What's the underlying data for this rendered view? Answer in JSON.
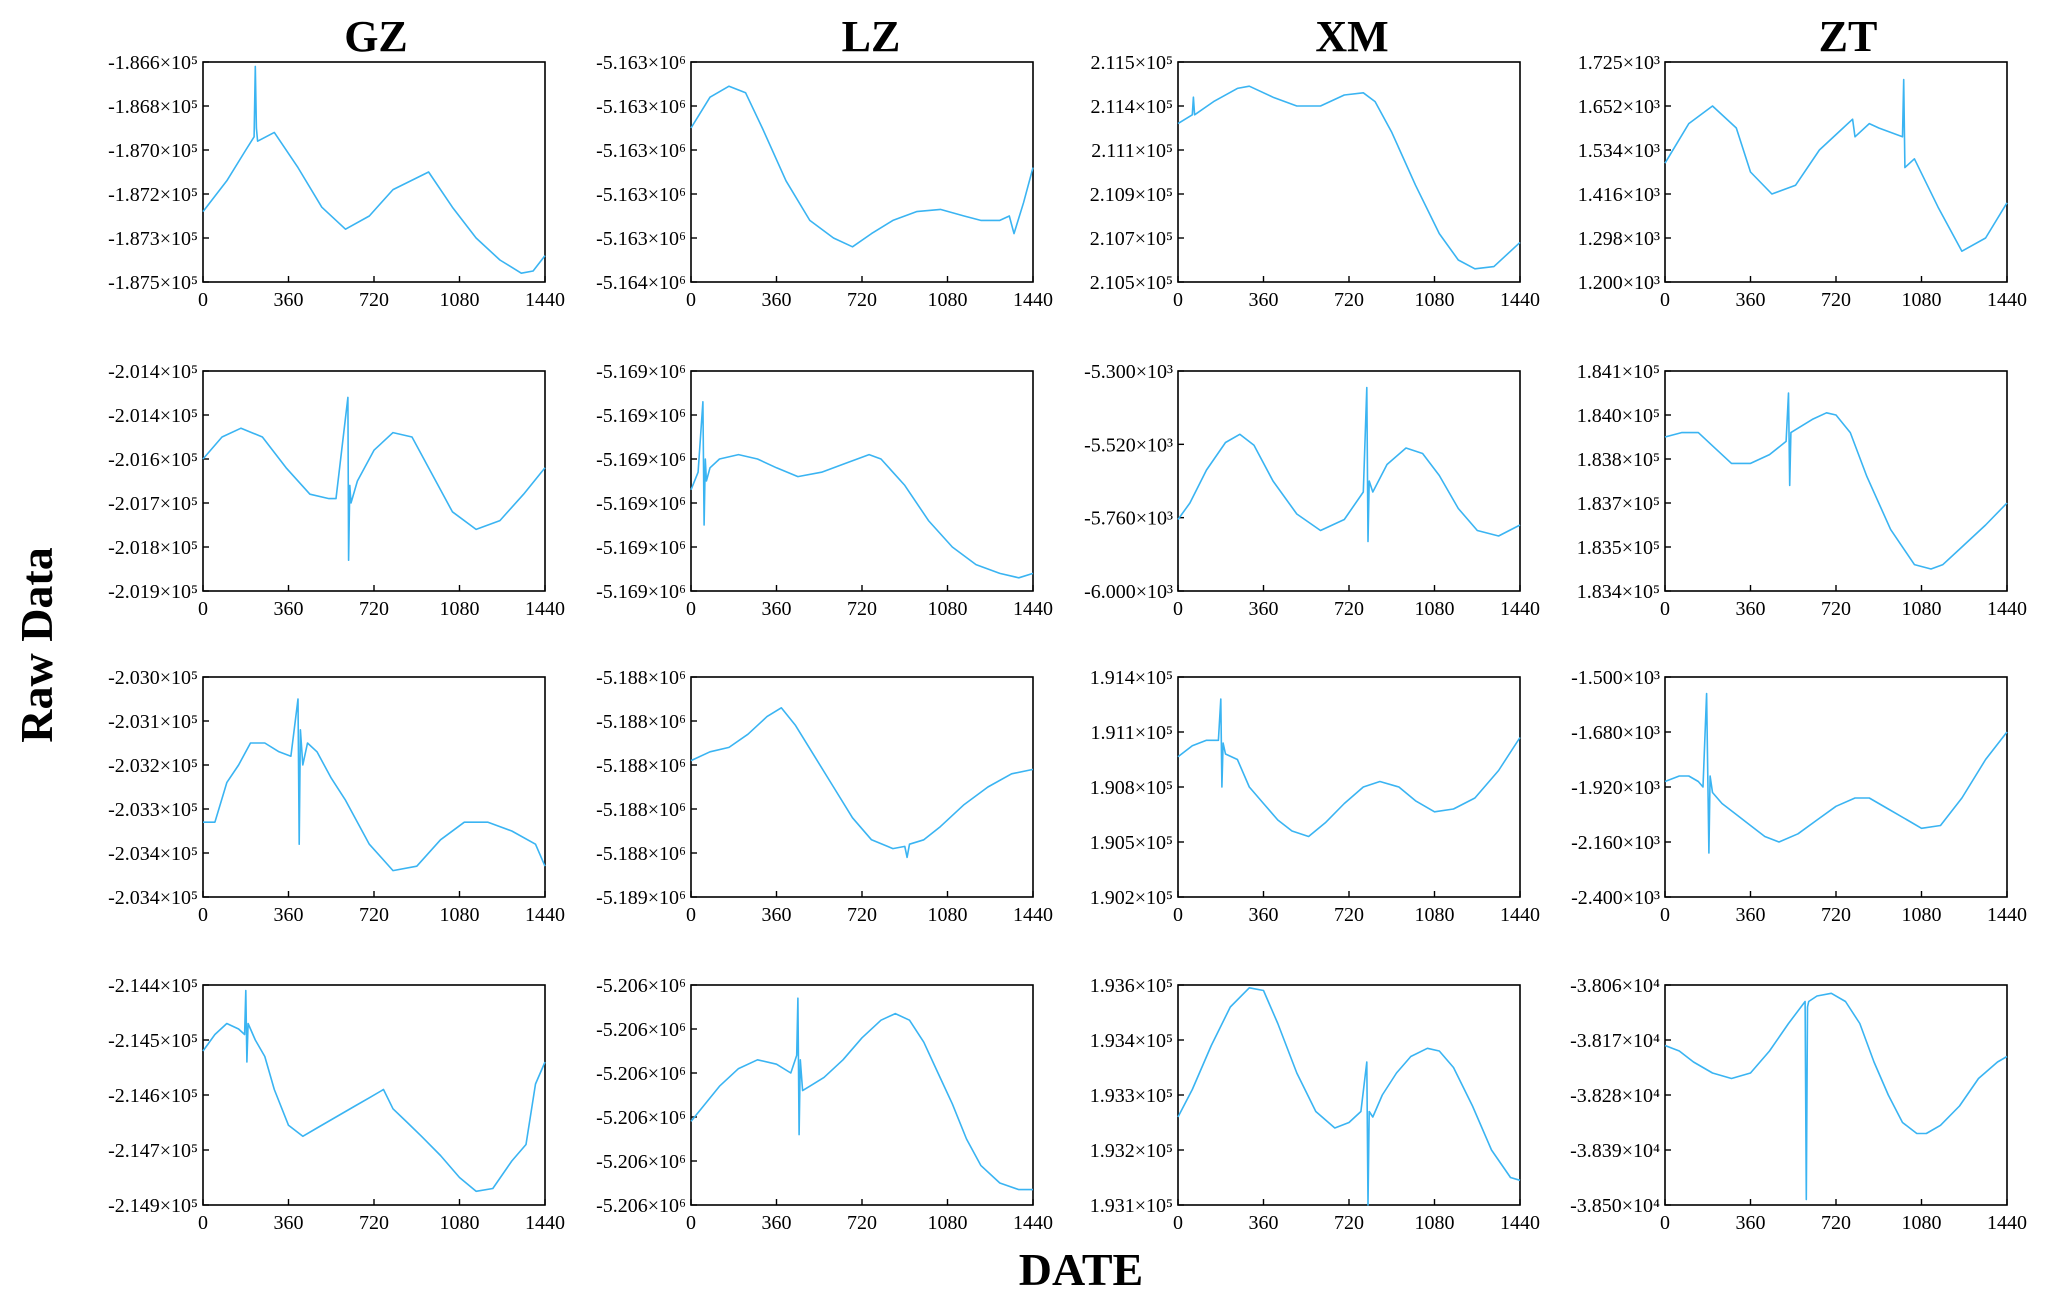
{
  "column_titles": [
    "GZ",
    "LZ",
    "XM",
    "ZT"
  ],
  "ylabel": "Raw Data",
  "xlabel": "DATE",
  "line_color": "#3ab4f2",
  "chart_data": [
    {
      "type": "line",
      "col": "GZ",
      "row": 1,
      "xlim": [
        0,
        1440
      ],
      "xticks": [
        "0",
        "360",
        "720",
        "1080",
        "1440"
      ],
      "yticks": [
        "-1.866×10⁵",
        "-1.868×10⁵",
        "-1.870×10⁵",
        "-1.872×10⁵",
        "-1.873×10⁵",
        "-1.875×10⁵"
      ],
      "ylim": [
        0,
        5
      ],
      "x": [
        0,
        100,
        180,
        215,
        220,
        225,
        230,
        300,
        400,
        500,
        600,
        700,
        800,
        950,
        1050,
        1150,
        1250,
        1340,
        1390,
        1440
      ],
      "y": [
        1.6,
        2.3,
        3.0,
        3.3,
        4.9,
        3.5,
        3.2,
        3.4,
        2.6,
        1.7,
        1.2,
        1.5,
        2.1,
        2.5,
        1.7,
        1.0,
        0.5,
        0.2,
        0.25,
        0.6
      ]
    },
    {
      "type": "line",
      "col": "LZ",
      "row": 1,
      "xlim": [
        0,
        1440
      ],
      "xticks": [
        "0",
        "360",
        "720",
        "1080",
        "1440"
      ],
      "yticks": [
        "-5.163×10⁶",
        "-5.163×10⁶",
        "-5.163×10⁶",
        "-5.163×10⁶",
        "-5.163×10⁶",
        "-5.164×10⁶"
      ],
      "ylim": [
        0,
        5
      ],
      "x": [
        0,
        80,
        160,
        230,
        300,
        400,
        500,
        600,
        680,
        760,
        850,
        950,
        1050,
        1150,
        1220,
        1300,
        1340,
        1360,
        1400,
        1440
      ],
      "y": [
        3.5,
        4.2,
        4.45,
        4.3,
        3.5,
        2.3,
        1.4,
        1.0,
        0.8,
        1.1,
        1.4,
        1.6,
        1.65,
        1.5,
        1.4,
        1.4,
        1.5,
        1.1,
        1.8,
        2.6
      ]
    },
    {
      "type": "line",
      "col": "XM",
      "row": 1,
      "xlim": [
        0,
        1440
      ],
      "xticks": [
        "0",
        "360",
        "720",
        "1080",
        "1440"
      ],
      "yticks": [
        "2.115×10⁵",
        "2.114×10⁵",
        "2.111×10⁵",
        "2.109×10⁵",
        "2.107×10⁵",
        "2.105×10⁵"
      ],
      "ylim": [
        0,
        5
      ],
      "x": [
        0,
        60,
        65,
        70,
        150,
        250,
        300,
        400,
        500,
        600,
        700,
        780,
        830,
        900,
        1000,
        1100,
        1180,
        1250,
        1330,
        1440
      ],
      "y": [
        3.6,
        3.8,
        4.2,
        3.8,
        4.1,
        4.4,
        4.45,
        4.2,
        4.0,
        4.0,
        4.25,
        4.3,
        4.1,
        3.4,
        2.2,
        1.1,
        0.5,
        0.3,
        0.35,
        0.9
      ]
    },
    {
      "type": "line",
      "col": "ZT",
      "row": 1,
      "xlim": [
        0,
        1440
      ],
      "xticks": [
        "0",
        "360",
        "720",
        "1080",
        "1440"
      ],
      "yticks": [
        "1.725×10³",
        "1.652×10³",
        "1.534×10³",
        "1.416×10³",
        "1.298×10³",
        "1.200×10³"
      ],
      "ylim": [
        0,
        5
      ],
      "x": [
        0,
        100,
        200,
        300,
        360,
        450,
        550,
        650,
        750,
        790,
        800,
        860,
        900,
        1000,
        1005,
        1010,
        1050,
        1150,
        1250,
        1350,
        1440
      ],
      "y": [
        2.7,
        3.6,
        4.0,
        3.5,
        2.5,
        2.0,
        2.2,
        3.0,
        3.5,
        3.7,
        3.3,
        3.6,
        3.5,
        3.3,
        4.6,
        2.6,
        2.8,
        1.7,
        0.7,
        1.0,
        1.8
      ]
    },
    {
      "type": "line",
      "col": "GZ",
      "row": 2,
      "xlim": [
        0,
        1440
      ],
      "xticks": [
        "0",
        "360",
        "720",
        "1080",
        "1440"
      ],
      "yticks": [
        "-2.014×10⁵",
        "-2.014×10⁵",
        "-2.016×10⁵",
        "-2.017×10⁵",
        "-2.018×10⁵",
        "-2.019×10⁵"
      ],
      "ylim": [
        0,
        5
      ],
      "x": [
        0,
        80,
        160,
        250,
        350,
        450,
        530,
        560,
        610,
        613,
        618,
        623,
        650,
        720,
        800,
        880,
        950,
        1050,
        1150,
        1250,
        1350,
        1440
      ],
      "y": [
        3.0,
        3.5,
        3.7,
        3.5,
        2.8,
        2.2,
        2.1,
        2.1,
        4.4,
        0.7,
        2.4,
        2.0,
        2.5,
        3.2,
        3.6,
        3.5,
        2.8,
        1.8,
        1.4,
        1.6,
        2.2,
        2.8
      ]
    },
    {
      "type": "line",
      "col": "LZ",
      "row": 2,
      "xlim": [
        0,
        1440
      ],
      "xticks": [
        "0",
        "360",
        "720",
        "1080",
        "1440"
      ],
      "yticks": [
        "-5.169×10⁶",
        "-5.169×10⁶",
        "-5.169×10⁶",
        "-5.169×10⁶",
        "-5.169×10⁶",
        "-5.169×10⁶"
      ],
      "ylim": [
        0,
        5
      ],
      "x": [
        0,
        30,
        50,
        55,
        60,
        65,
        80,
        120,
        200,
        280,
        360,
        450,
        550,
        650,
        750,
        800,
        900,
        1000,
        1100,
        1200,
        1300,
        1380,
        1440
      ],
      "y": [
        2.3,
        2.7,
        4.3,
        1.5,
        3.0,
        2.5,
        2.8,
        3.0,
        3.1,
        3.0,
        2.8,
        2.6,
        2.7,
        2.9,
        3.1,
        3.0,
        2.4,
        1.6,
        1.0,
        0.6,
        0.4,
        0.3,
        0.4
      ]
    },
    {
      "type": "line",
      "col": "XM",
      "row": 2,
      "xlim": [
        0,
        1440
      ],
      "xticks": [
        "0",
        "360",
        "720",
        "1080",
        "1440"
      ],
      "yticks": [
        "-5.300×10³",
        "-5.520×10³",
        "-5.760×10³",
        "-6.000×10³"
      ],
      "ylim": [
        0,
        4
      ],
      "x": [
        0,
        50,
        120,
        200,
        260,
        320,
        400,
        500,
        600,
        700,
        780,
        795,
        800,
        805,
        820,
        880,
        960,
        1030,
        1100,
        1180,
        1260,
        1350,
        1440
      ],
      "y": [
        1.3,
        1.6,
        2.2,
        2.7,
        2.85,
        2.65,
        2.0,
        1.4,
        1.1,
        1.3,
        1.8,
        3.7,
        0.9,
        2.0,
        1.8,
        2.3,
        2.6,
        2.5,
        2.1,
        1.5,
        1.1,
        1.0,
        1.2
      ]
    },
    {
      "type": "line",
      "col": "ZT",
      "row": 2,
      "xlim": [
        0,
        1440
      ],
      "xticks": [
        "0",
        "360",
        "720",
        "1080",
        "1440"
      ],
      "yticks": [
        "1.841×10⁵",
        "1.840×10⁵",
        "1.838×10⁵",
        "1.837×10⁵",
        "1.835×10⁵",
        "1.834×10⁵"
      ],
      "ylim": [
        0,
        5
      ],
      "x": [
        0,
        70,
        140,
        200,
        280,
        360,
        440,
        510,
        520,
        525,
        530,
        560,
        620,
        680,
        720,
        780,
        850,
        950,
        1050,
        1120,
        1170,
        1250,
        1350,
        1440
      ],
      "y": [
        3.5,
        3.6,
        3.6,
        3.3,
        2.9,
        2.9,
        3.1,
        3.4,
        4.5,
        2.4,
        3.6,
        3.7,
        3.9,
        4.05,
        4.0,
        3.6,
        2.6,
        1.4,
        0.6,
        0.5,
        0.6,
        1.0,
        1.5,
        2.0
      ]
    },
    {
      "type": "line",
      "col": "GZ",
      "row": 3,
      "xlim": [
        0,
        1440
      ],
      "xticks": [
        "0",
        "360",
        "720",
        "1080",
        "1440"
      ],
      "yticks": [
        "-2.030×10⁵",
        "-2.031×10⁵",
        "-2.032×10⁵",
        "-2.033×10⁵",
        "-2.034×10⁵",
        "-2.034×10⁵"
      ],
      "ylim": [
        0,
        5
      ],
      "x": [
        0,
        50,
        100,
        150,
        200,
        260,
        320,
        370,
        400,
        405,
        410,
        420,
        440,
        480,
        540,
        600,
        700,
        800,
        900,
        1000,
        1100,
        1200,
        1300,
        1400,
        1440
      ],
      "y": [
        1.7,
        1.7,
        2.6,
        3.0,
        3.5,
        3.5,
        3.3,
        3.2,
        4.5,
        1.2,
        3.8,
        3.0,
        3.5,
        3.3,
        2.7,
        2.2,
        1.2,
        0.6,
        0.7,
        1.3,
        1.7,
        1.7,
        1.5,
        1.2,
        0.7
      ]
    },
    {
      "type": "line",
      "col": "LZ",
      "row": 3,
      "xlim": [
        0,
        1440
      ],
      "xticks": [
        "0",
        "360",
        "720",
        "1080",
        "1440"
      ],
      "yticks": [
        "-5.188×10⁶",
        "-5.188×10⁶",
        "-5.188×10⁶",
        "-5.188×10⁶",
        "-5.188×10⁶",
        "-5.189×10⁶"
      ],
      "ylim": [
        0,
        5
      ],
      "x": [
        0,
        80,
        160,
        240,
        320,
        380,
        440,
        520,
        600,
        680,
        760,
        850,
        900,
        910,
        920,
        980,
        1050,
        1150,
        1250,
        1350,
        1440
      ],
      "y": [
        3.1,
        3.3,
        3.4,
        3.7,
        4.1,
        4.3,
        3.9,
        3.2,
        2.5,
        1.8,
        1.3,
        1.1,
        1.15,
        0.9,
        1.2,
        1.3,
        1.6,
        2.1,
        2.5,
        2.8,
        2.9
      ]
    },
    {
      "type": "line",
      "col": "XM",
      "row": 3,
      "xlim": [
        0,
        1440
      ],
      "xticks": [
        "0",
        "360",
        "720",
        "1080",
        "1440"
      ],
      "yticks": [
        "1.914×10⁵",
        "1.911×10⁵",
        "1.908×10⁵",
        "1.905×10⁵",
        "1.902×10⁵"
      ],
      "ylim": [
        0,
        4
      ],
      "x": [
        0,
        60,
        120,
        170,
        180,
        185,
        190,
        200,
        250,
        300,
        360,
        420,
        480,
        550,
        620,
        700,
        780,
        850,
        930,
        1000,
        1080,
        1160,
        1250,
        1350,
        1440
      ],
      "y": [
        2.55,
        2.75,
        2.85,
        2.85,
        3.6,
        2.0,
        2.8,
        2.6,
        2.5,
        2.0,
        1.7,
        1.4,
        1.2,
        1.1,
        1.35,
        1.7,
        2.0,
        2.1,
        2.0,
        1.75,
        1.55,
        1.6,
        1.8,
        2.3,
        2.9
      ]
    },
    {
      "type": "line",
      "col": "ZT",
      "row": 3,
      "xlim": [
        0,
        1440
      ],
      "xticks": [
        "0",
        "360",
        "720",
        "1080",
        "1440"
      ],
      "yticks": [
        "-1.500×10³",
        "-1.680×10³",
        "-1.920×10³",
        "-2.160×10³",
        "-2.400×10³"
      ],
      "ylim": [
        0,
        4
      ],
      "x": [
        0,
        60,
        100,
        140,
        160,
        175,
        185,
        190,
        200,
        240,
        300,
        360,
        420,
        480,
        560,
        640,
        720,
        800,
        860,
        940,
        1020,
        1080,
        1160,
        1250,
        1350,
        1440
      ],
      "y": [
        2.1,
        2.2,
        2.2,
        2.1,
        2.0,
        3.7,
        0.8,
        2.2,
        1.9,
        1.7,
        1.5,
        1.3,
        1.1,
        1.0,
        1.15,
        1.4,
        1.65,
        1.8,
        1.8,
        1.6,
        1.4,
        1.25,
        1.3,
        1.8,
        2.5,
        3.0
      ]
    },
    {
      "type": "line",
      "col": "GZ",
      "row": 4,
      "xlim": [
        0,
        1440
      ],
      "xticks": [
        "0",
        "360",
        "720",
        "1080",
        "1440"
      ],
      "yticks": [
        "-2.144×10⁵",
        "-2.145×10⁵",
        "-2.146×10⁵",
        "-2.147×10⁵",
        "-2.149×10⁵"
      ],
      "ylim": [
        0,
        4
      ],
      "x": [
        0,
        50,
        100,
        150,
        175,
        180,
        185,
        190,
        220,
        260,
        300,
        360,
        420,
        480,
        560,
        640,
        700,
        760,
        800,
        860,
        920,
        1000,
        1080,
        1150,
        1220,
        1300,
        1360,
        1400,
        1440
      ],
      "y": [
        2.8,
        3.1,
        3.3,
        3.2,
        3.1,
        3.9,
        2.6,
        3.3,
        3.0,
        2.7,
        2.1,
        1.45,
        1.25,
        1.4,
        1.6,
        1.8,
        1.95,
        2.1,
        1.75,
        1.5,
        1.25,
        0.9,
        0.5,
        0.25,
        0.3,
        0.8,
        1.1,
        2.2,
        2.6
      ]
    },
    {
      "type": "line",
      "col": "LZ",
      "row": 4,
      "xlim": [
        0,
        1440
      ],
      "xticks": [
        "0",
        "360",
        "720",
        "1080",
        "1440"
      ],
      "yticks": [
        "-5.206×10⁶",
        "-5.206×10⁶",
        "-5.206×10⁶",
        "-5.206×10⁶",
        "-5.206×10⁶",
        "-5.206×10⁶"
      ],
      "ylim": [
        0,
        5
      ],
      "x": [
        0,
        60,
        120,
        200,
        280,
        360,
        420,
        445,
        450,
        455,
        460,
        470,
        500,
        560,
        640,
        720,
        800,
        860,
        920,
        980,
        1040,
        1100,
        1160,
        1220,
        1300,
        1380,
        1440
      ],
      "y": [
        1.9,
        2.3,
        2.7,
        3.1,
        3.3,
        3.2,
        3.0,
        3.4,
        4.7,
        1.6,
        3.3,
        2.6,
        2.7,
        2.9,
        3.3,
        3.8,
        4.2,
        4.35,
        4.2,
        3.7,
        3.0,
        2.3,
        1.5,
        0.9,
        0.5,
        0.35,
        0.35
      ]
    },
    {
      "type": "line",
      "col": "XM",
      "row": 4,
      "xlim": [
        0,
        1440
      ],
      "xticks": [
        "0",
        "360",
        "720",
        "1080",
        "1440"
      ],
      "yticks": [
        "1.936×10⁵",
        "1.934×10⁵",
        "1.933×10⁵",
        "1.932×10⁵",
        "1.931×10⁵"
      ],
      "ylim": [
        0,
        4
      ],
      "x": [
        0,
        60,
        140,
        220,
        300,
        360,
        420,
        500,
        580,
        660,
        720,
        770,
        795,
        800,
        805,
        820,
        860,
        920,
        980,
        1050,
        1100,
        1160,
        1240,
        1320,
        1400,
        1440
      ],
      "y": [
        1.6,
        2.1,
        2.9,
        3.6,
        3.95,
        3.9,
        3.3,
        2.4,
        1.7,
        1.4,
        1.5,
        1.7,
        2.6,
        0.0,
        1.7,
        1.6,
        2.0,
        2.4,
        2.7,
        2.85,
        2.8,
        2.5,
        1.8,
        1.0,
        0.5,
        0.45
      ]
    },
    {
      "type": "line",
      "col": "ZT",
      "row": 4,
      "xlim": [
        0,
        1440
      ],
      "xticks": [
        "0",
        "360",
        "720",
        "1080",
        "1440"
      ],
      "yticks": [
        "-3.806×10⁴",
        "-3.817×10⁴",
        "-3.828×10⁴",
        "-3.839×10⁴",
        "-3.850×10⁴"
      ],
      "ylim": [
        0,
        4
      ],
      "x": [
        0,
        60,
        120,
        200,
        280,
        360,
        440,
        520,
        590,
        595,
        600,
        605,
        640,
        700,
        760,
        820,
        880,
        940,
        1000,
        1060,
        1100,
        1160,
        1240,
        1320,
        1400,
        1440
      ],
      "y": [
        2.9,
        2.8,
        2.6,
        2.4,
        2.3,
        2.4,
        2.8,
        3.3,
        3.7,
        0.1,
        3.6,
        3.7,
        3.8,
        3.85,
        3.7,
        3.3,
        2.6,
        2.0,
        1.5,
        1.3,
        1.3,
        1.45,
        1.8,
        2.3,
        2.6,
        2.7
      ]
    }
  ]
}
